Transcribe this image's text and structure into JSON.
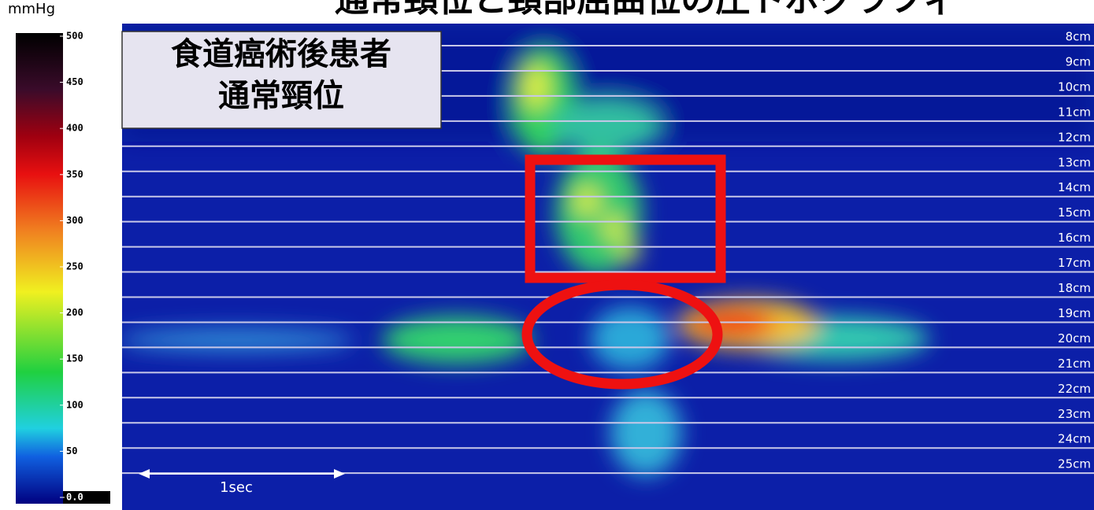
{
  "title": "通常頸位と頸部屈曲位の圧トポグラフィ",
  "colorbar": {
    "unit": "mmHg",
    "min": 0,
    "max": 500,
    "ticks": [
      500,
      450,
      400,
      350,
      300,
      250,
      200,
      150,
      100,
      50,
      {
        "value": 0,
        "label": "0.0"
      }
    ]
  },
  "panel": {
    "label_lines": [
      "食道癌術後患者",
      "通常頸位"
    ]
  },
  "depth_labels": [
    "8cm",
    "9cm",
    "10cm",
    "11cm",
    "12cm",
    "13cm",
    "14cm",
    "15cm",
    "16cm",
    "17cm",
    "18cm",
    "19cm",
    "20cm",
    "21cm",
    "22cm",
    "23cm",
    "24cm",
    "25cm"
  ],
  "scale_bar": "1sec"
}
